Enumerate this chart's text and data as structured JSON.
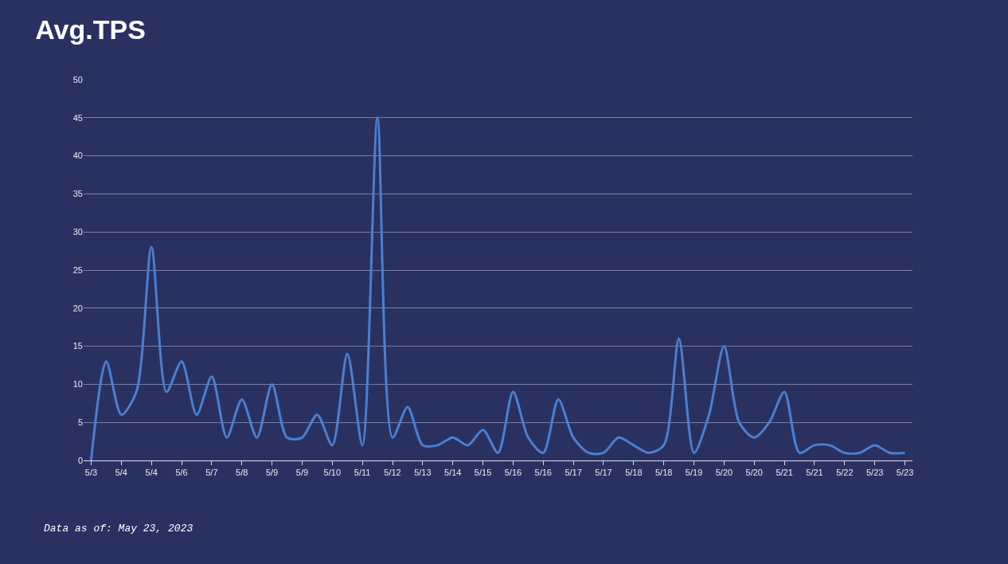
{
  "chart_data": {
    "type": "line",
    "title": "Avg.TPS",
    "categories": [
      "5/3",
      null,
      "5/4",
      null,
      "5/4",
      null,
      "5/6",
      null,
      "5/7",
      null,
      "5/8",
      null,
      "5/9",
      null,
      "5/9",
      null,
      "5/10",
      null,
      "5/11",
      null,
      "5/12",
      null,
      "5/13",
      null,
      "5/14",
      null,
      "5/15",
      null,
      "5/16",
      null,
      "5/16",
      null,
      "5/17",
      null,
      "5/17",
      null,
      "5/18",
      null,
      "5/18",
      null,
      "5/19",
      null,
      "5/20",
      null,
      "5/20",
      null,
      "5/21",
      null,
      "5/21",
      null,
      "5/22",
      null,
      "5/23",
      null,
      "5/23"
    ],
    "series": [
      {
        "color": "#4a7fd4",
        "values": [
          0,
          13,
          6,
          9,
          28,
          9,
          13,
          6,
          11,
          3,
          8,
          3,
          10,
          3,
          3,
          6,
          2,
          14,
          2,
          45,
          3,
          7,
          2,
          2,
          3,
          2,
          4,
          1,
          9,
          3,
          1,
          8,
          3,
          1,
          1,
          3,
          2,
          1,
          2,
          16,
          1,
          6,
          15,
          5,
          3,
          5,
          9,
          1,
          2,
          2,
          1,
          1,
          2,
          1,
          1
        ]
      }
    ],
    "ylim": [
      0,
      50
    ],
    "yticks": [
      0,
      5,
      10,
      15,
      20,
      25,
      30,
      35,
      40,
      45,
      50
    ],
    "grid": "y",
    "legend": false,
    "marker": "none",
    "line_style": "solid",
    "annotations": [
      "Data as of: May 23, 2023"
    ]
  }
}
